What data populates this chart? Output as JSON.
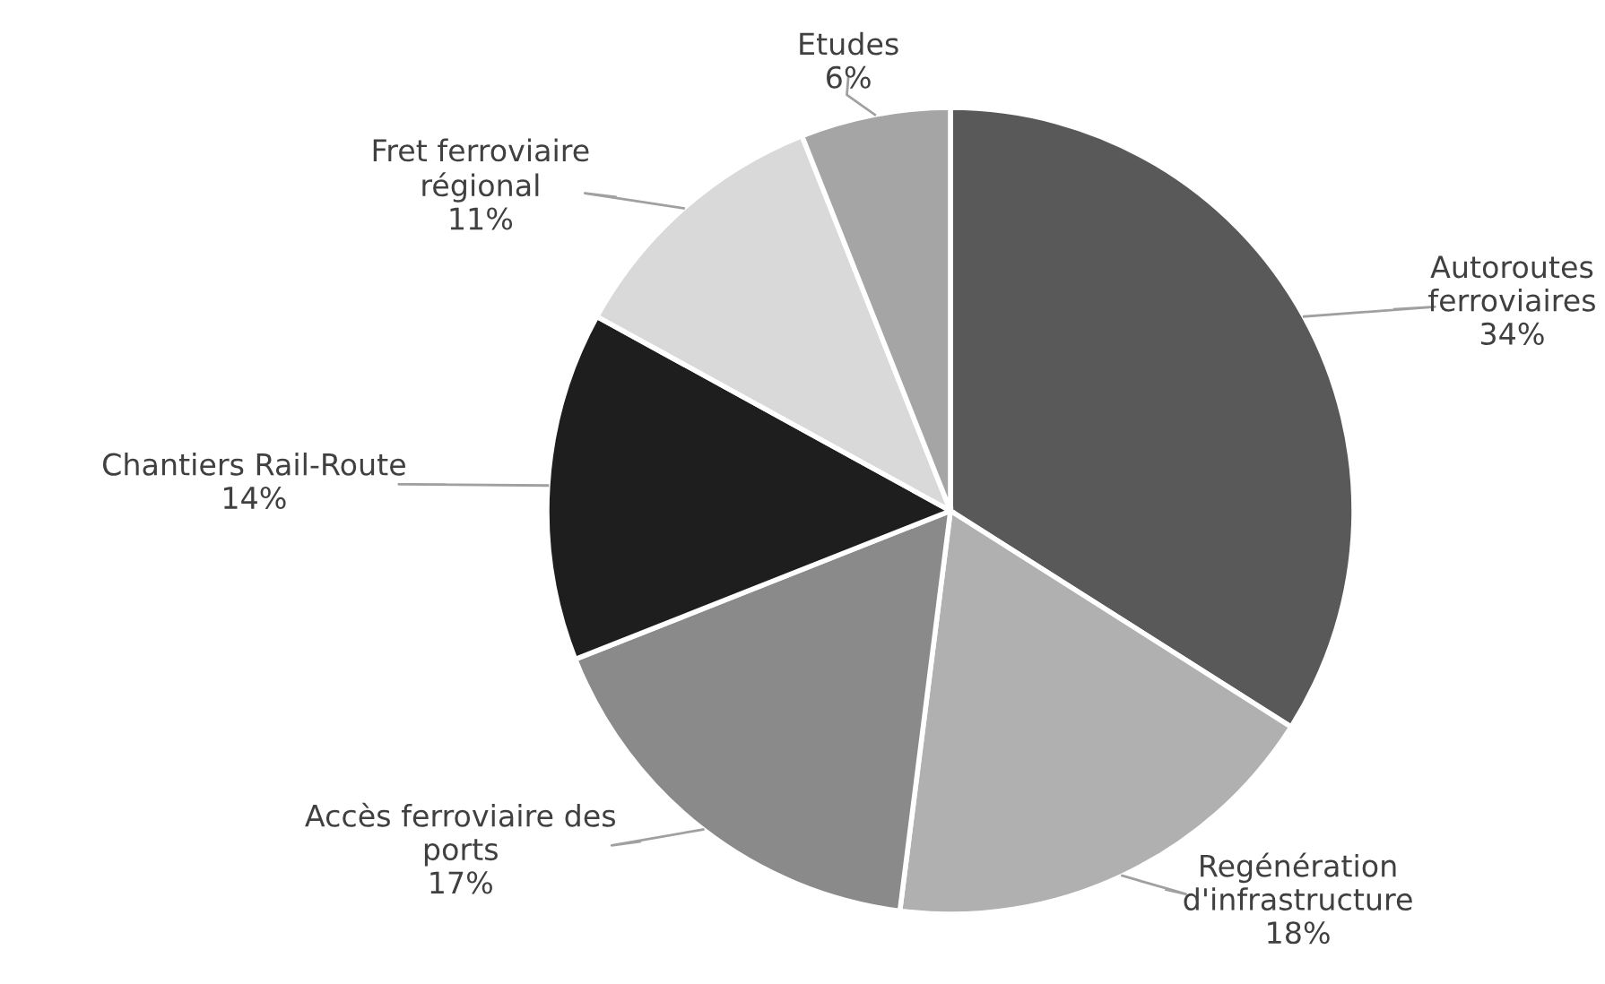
{
  "chart_data": {
    "type": "pie",
    "categories": [
      "Autoroutes\nferroviaires",
      "Regénération\nd'infrastructure",
      "Accès ferroviaire des\nports",
      "Chantiers Rail-Route",
      "Fret ferroviaire\nrégional",
      "Etudes"
    ],
    "values": [
      34,
      18,
      17,
      14,
      11,
      6
    ],
    "value_labels": [
      "34%",
      "18%",
      "17%",
      "14%",
      "11%",
      "6%"
    ],
    "colors": [
      "#595959",
      "#b0b0b0",
      "#8a8a8a",
      "#1e1e1e",
      "#d9d9d9",
      "#a5a5a5"
    ],
    "legend": false
  }
}
